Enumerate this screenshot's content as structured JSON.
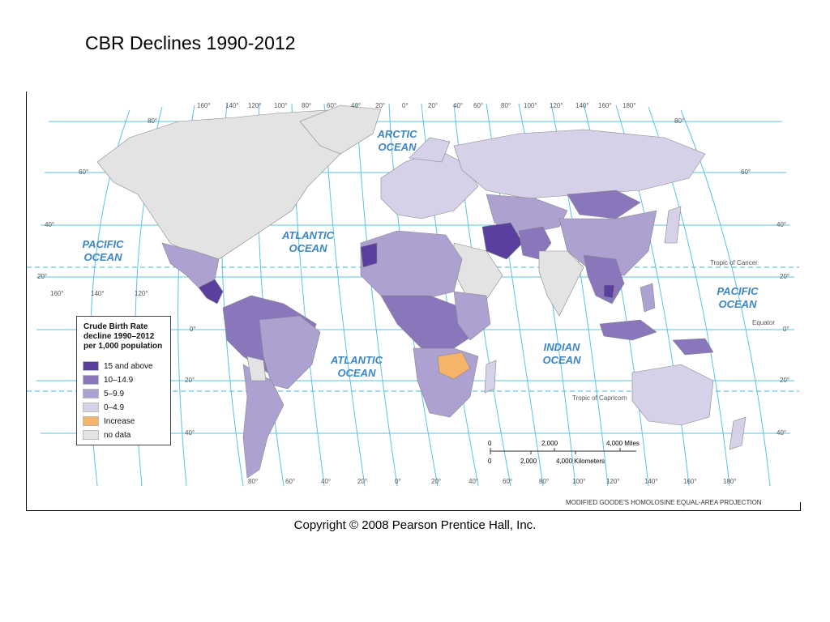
{
  "title": "CBR Declines 1990-2012",
  "copyright": "Copyright © 2008 Pearson Prentice Hall, Inc.",
  "legend": {
    "title_lines": [
      "Crude Birth Rate",
      "decline 1990–2012",
      "per 1,000 population"
    ],
    "items": [
      {
        "label": "15 and above",
        "color": "#5b3f9e"
      },
      {
        "label": "10–14.9",
        "color": "#8a77bb"
      },
      {
        "label": "5–9.9",
        "color": "#ada1d2"
      },
      {
        "label": "0–4.9",
        "color": "#d6d0e8"
      },
      {
        "label": "Increase",
        "color": "#f5b46a"
      },
      {
        "label": "no data",
        "color": "#e3e3e3"
      }
    ]
  },
  "oceans": {
    "arctic": "ARCTIC OCEAN",
    "atlantic_north": "ATLANTIC OCEAN",
    "atlantic_south": "ATLANTIC OCEAN",
    "pacific_west": "PACIFIC OCEAN",
    "pacific_east": "PACIFIC OCEAN",
    "indian": "INDIAN OCEAN"
  },
  "lines": {
    "tropic_cancer": "Tropic of Cancer",
    "equator": "Equator",
    "tropic_capricorn": "Tropic of Capricorn"
  },
  "top_longitudes": [
    "160°",
    "140°",
    "120°",
    "100°",
    "80°",
    "60°",
    "40°",
    "20°",
    "0°",
    "20°",
    "40°",
    "60°",
    "80°",
    "100°",
    "120°",
    "140°",
    "160°",
    "180°"
  ],
  "bottom_longitudes": [
    "80°",
    "60°",
    "40°",
    "20°",
    "0°",
    "20°",
    "40°",
    "60°",
    "80°",
    "100°",
    "120°",
    "140°",
    "160°",
    "180°"
  ],
  "left_latitudes": [
    "80°",
    "60°",
    "40°",
    "20°",
    "0°",
    "20°",
    "40°"
  ],
  "right_latitudes": [
    "80°",
    "60°",
    "40°",
    "20°",
    "0°",
    "20°",
    "40°"
  ],
  "west_longitudes_low": [
    "160°",
    "140°",
    "120°"
  ],
  "scale": {
    "miles_ticks": [
      "0",
      "2,000",
      "4,000 Miles"
    ],
    "km_ticks": [
      "0",
      "2,000",
      "4,000 Kilometers"
    ]
  },
  "projection": "MODIFIED GOODE'S HOMOLOSINE EQUAL-AREA PROJECTION",
  "colors": {
    "ocean_lines": "#3fb4d9",
    "c15": "#5b3f9e",
    "c10": "#8a77bb",
    "c5": "#ada1d2",
    "c0": "#d6d0e8",
    "increase": "#f5b46a",
    "nodata": "#e3e3e3"
  }
}
